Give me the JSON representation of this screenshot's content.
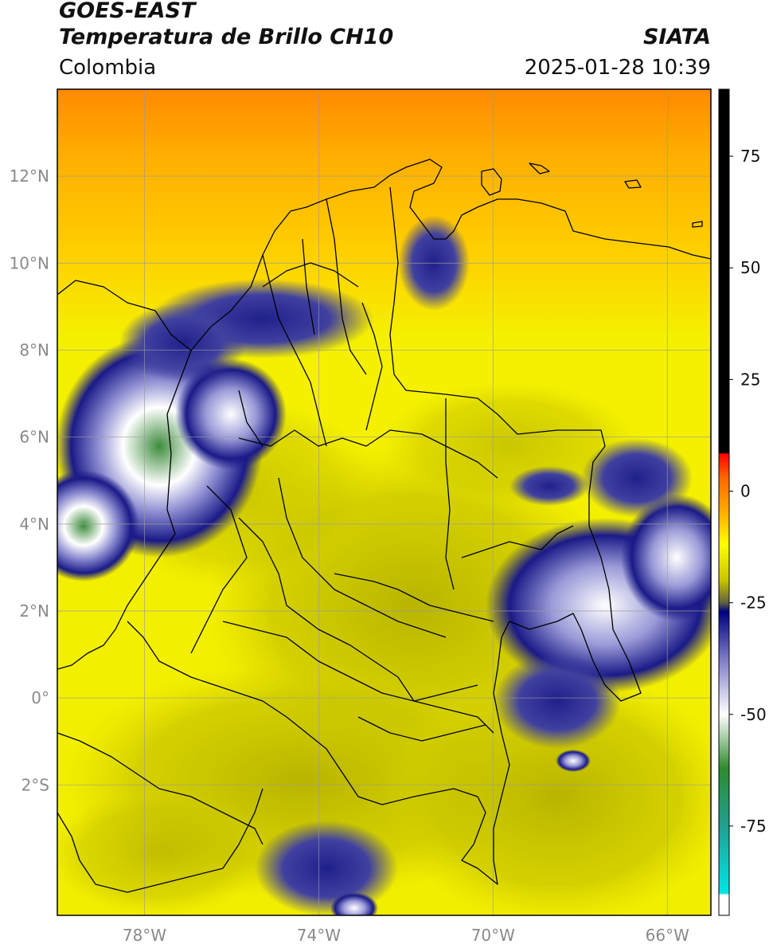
{
  "header": {
    "satellite": "GOES-EAST",
    "product": "Temperatura de Brillo CH10",
    "organization": "SIATA",
    "region": "Colombia",
    "timestamp": "2025-01-28 10:39"
  },
  "map": {
    "lon_range": [
      -80,
      -65
    ],
    "lat_range": [
      -5,
      14
    ],
    "lat_ticks": [
      {
        "value": 12,
        "label": "12°N"
      },
      {
        "value": 10,
        "label": "10°N"
      },
      {
        "value": 8,
        "label": "8°N"
      },
      {
        "value": 6,
        "label": "6°N"
      },
      {
        "value": 4,
        "label": "4°N"
      },
      {
        "value": 2,
        "label": "2°N"
      },
      {
        "value": 0,
        "label": "0°"
      },
      {
        "value": -2,
        "label": "2°S"
      }
    ],
    "lon_ticks": [
      {
        "value": -78,
        "label": "78°W"
      },
      {
        "value": -74,
        "label": "74°W"
      },
      {
        "value": -70,
        "label": "70°W"
      },
      {
        "value": -66,
        "label": "66°W"
      }
    ],
    "colors": {
      "background": "#f4f000",
      "grid": "#9a9a9a",
      "border": "#000000"
    }
  },
  "colorbar": {
    "range": [
      -95,
      90
    ],
    "ticks": [
      75,
      50,
      25,
      0,
      -25,
      -50,
      -75
    ],
    "stops": [
      {
        "value": 90,
        "color": "#000000"
      },
      {
        "value": 8.5,
        "color": "#000000"
      },
      {
        "value": 8.4,
        "color": "#ff0000"
      },
      {
        "value": 3,
        "color": "#ff6600"
      },
      {
        "value": -5,
        "color": "#ffb000"
      },
      {
        "value": -12,
        "color": "#ffff00"
      },
      {
        "value": -20,
        "color": "#c8c400"
      },
      {
        "value": -25,
        "color": "#606040"
      },
      {
        "value": -27,
        "color": "#000080"
      },
      {
        "value": -38,
        "color": "#8080c8"
      },
      {
        "value": -50,
        "color": "#ffffff"
      },
      {
        "value": -62,
        "color": "#2e8b2e"
      },
      {
        "value": -75,
        "color": "#20a090"
      },
      {
        "value": -90,
        "color": "#00e6e6"
      },
      {
        "value": -90.5,
        "color": "#ffffff"
      },
      {
        "value": -95,
        "color": "#ffffff"
      }
    ]
  }
}
